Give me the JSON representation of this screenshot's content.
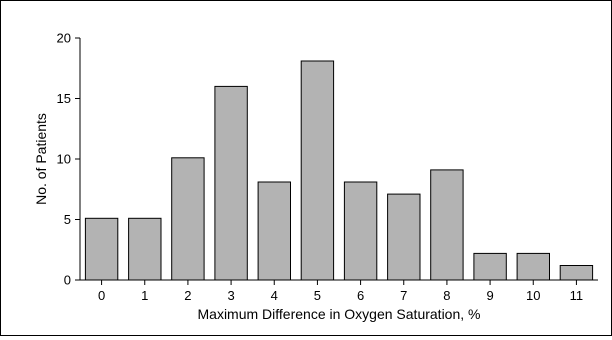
{
  "chart_data": {
    "type": "bar",
    "categories": [
      "0",
      "1",
      "2",
      "3",
      "4",
      "5",
      "6",
      "7",
      "8",
      "9",
      "10",
      "11"
    ],
    "values": [
      5.1,
      5.1,
      10.1,
      16.0,
      8.1,
      18.1,
      8.1,
      7.1,
      9.1,
      2.2,
      2.2,
      1.2
    ],
    "xlabel": "Maximum Difference in Oxygen Saturation, %",
    "ylabel": "No. of Patients",
    "ylim": [
      0,
      20
    ],
    "yticks": [
      "0",
      "5",
      "10",
      "15",
      "20"
    ],
    "grid": false,
    "bar_color": "#b3b3b3",
    "bar_edge_color": "#000000"
  }
}
